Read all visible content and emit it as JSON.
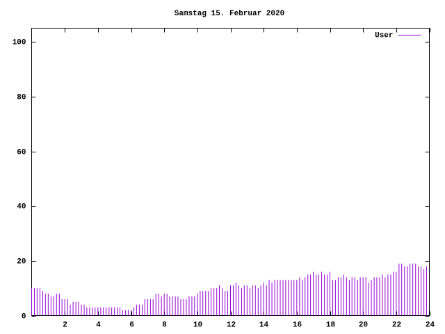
{
  "chart_data": {
    "type": "impulse",
    "title": "Samstag 15. Februar 2020",
    "xlim": [
      0,
      24
    ],
    "xticks": [
      2,
      4,
      6,
      8,
      10,
      12,
      14,
      16,
      18,
      20,
      22,
      24
    ],
    "ylim": [
      0,
      105
    ],
    "yticks": [
      0,
      20,
      40,
      60,
      80,
      100
    ],
    "legend": "top-right",
    "series": [
      {
        "name": "User",
        "color": "#9400d3",
        "x": [
          0,
          0.17,
          0.33,
          0.5,
          0.67,
          0.83,
          1,
          1.17,
          1.33,
          1.5,
          1.67,
          1.83,
          2,
          2.17,
          2.33,
          2.5,
          2.67,
          2.83,
          3,
          3.17,
          3.33,
          3.5,
          3.67,
          3.83,
          4,
          4.17,
          4.33,
          4.5,
          4.67,
          4.83,
          5,
          5.17,
          5.33,
          5.5,
          5.67,
          5.83,
          6,
          6.17,
          6.33,
          6.5,
          6.67,
          6.83,
          7,
          7.17,
          7.33,
          7.5,
          7.67,
          7.83,
          8,
          8.17,
          8.33,
          8.5,
          8.67,
          8.83,
          9,
          9.17,
          9.33,
          9.5,
          9.67,
          9.83,
          10,
          10.17,
          10.33,
          10.5,
          10.67,
          10.83,
          11,
          11.17,
          11.33,
          11.5,
          11.67,
          11.83,
          12,
          12.17,
          12.33,
          12.5,
          12.67,
          12.83,
          13,
          13.17,
          13.33,
          13.5,
          13.67,
          13.83,
          14,
          14.17,
          14.33,
          14.5,
          14.67,
          14.83,
          15,
          15.17,
          15.33,
          15.5,
          15.67,
          15.83,
          16,
          16.17,
          16.33,
          16.5,
          16.67,
          16.83,
          17,
          17.17,
          17.33,
          17.5,
          17.67,
          17.83,
          18,
          18.17,
          18.33,
          18.5,
          18.67,
          18.83,
          19,
          19.17,
          19.33,
          19.5,
          19.67,
          19.83,
          20,
          20.17,
          20.33,
          20.5,
          20.67,
          20.83,
          21,
          21.17,
          21.33,
          21.5,
          21.67,
          21.83,
          22,
          22.17,
          22.33,
          22.5,
          22.67,
          22.83,
          23,
          23.17,
          23.33,
          23.5,
          23.67,
          23.83
        ],
        "values": [
          10,
          10,
          10,
          10,
          9,
          8,
          8,
          7,
          7,
          8,
          8,
          6,
          6,
          6,
          4,
          5,
          5,
          5,
          4,
          4,
          3,
          3,
          3,
          3,
          3,
          3,
          3,
          3,
          3,
          3,
          3,
          3,
          3,
          2,
          2,
          2,
          2,
          3,
          4,
          4,
          4,
          6,
          6,
          6,
          6,
          8,
          8,
          7,
          8,
          8,
          7,
          7,
          7,
          7,
          6,
          6,
          6,
          7,
          7,
          7,
          8,
          9,
          9,
          9,
          9,
          10,
          10,
          10,
          11,
          10,
          9,
          9,
          11,
          11,
          12,
          11,
          10,
          11,
          11,
          10,
          11,
          11,
          10,
          11,
          12,
          11,
          13,
          12,
          13,
          13,
          13,
          13,
          13,
          13,
          13,
          13,
          13,
          14,
          13,
          14,
          15,
          15,
          16,
          15,
          15,
          16,
          15,
          15,
          16,
          13,
          13,
          14,
          14,
          15,
          14,
          13,
          14,
          14,
          13,
          14,
          14,
          14,
          12,
          13,
          14,
          14,
          14,
          15,
          14,
          15,
          15,
          16,
          16,
          19,
          19,
          18,
          18,
          19,
          19,
          19,
          18,
          18,
          17,
          18
        ]
      }
    ]
  }
}
